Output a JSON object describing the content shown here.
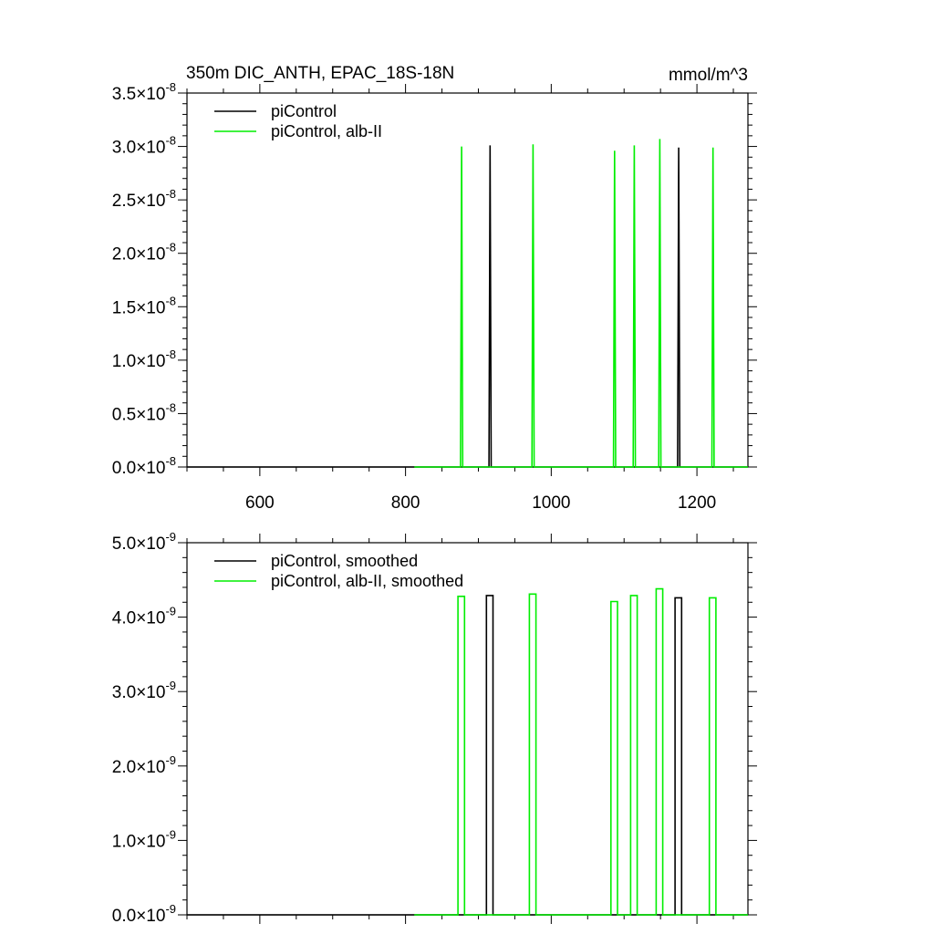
{
  "header": {
    "title": "350m DIC_ANTH, EPAC_18S-18N",
    "units": "mmol/m^3"
  },
  "colors": {
    "piControl": "#000000",
    "alb": "#00ee00"
  },
  "chart_data": [
    {
      "type": "line",
      "title": "350m DIC_ANTH, EPAC_18S-18N",
      "units_label": "mmol/m^3",
      "xlim": [
        500,
        1270
      ],
      "ylim": [
        0,
        3.5e-08
      ],
      "x_ticks": [
        600,
        800,
        1000,
        1200
      ],
      "x_tick_labels": [
        "600",
        "800",
        "1000",
        "1200"
      ],
      "y_ticks": [
        0,
        5e-09,
        1e-08,
        1.5e-08,
        2e-08,
        2.5e-08,
        3e-08,
        3.5e-08
      ],
      "y_tick_mantissas": [
        "0.0",
        "0.5",
        "1.0",
        "1.5",
        "2.0",
        "2.5",
        "3.0",
        "3.5"
      ],
      "y_tick_exponent": "-8",
      "grid": false,
      "legend_position": "top-left",
      "series": [
        {
          "name": "piControl",
          "color": "#000000",
          "baseline_x": [
            500,
            1270
          ],
          "spikes": [
            {
              "x": 916,
              "y": 3.01e-08
            },
            {
              "x": 1175,
              "y": 2.99e-08
            }
          ]
        },
        {
          "name": "piControl, alb-II",
          "color": "#00ee00",
          "baseline_x": [
            812,
            1270
          ],
          "spikes": [
            {
              "x": 877,
              "y": 3e-08
            },
            {
              "x": 975,
              "y": 3.02e-08
            },
            {
              "x": 1087,
              "y": 2.96e-08
            },
            {
              "x": 1114,
              "y": 3.01e-08
            },
            {
              "x": 1149,
              "y": 3.07e-08
            },
            {
              "x": 1222,
              "y": 2.99e-08
            }
          ]
        }
      ]
    },
    {
      "type": "line",
      "xlim": [
        500,
        1270
      ],
      "ylim": [
        0,
        5e-09
      ],
      "x_ticks": [
        600,
        800,
        1000,
        1200
      ],
      "y_ticks": [
        0,
        1e-09,
        2e-09,
        3e-09,
        4e-09,
        5e-09
      ],
      "y_tick_mantissas": [
        "0.0",
        "1.0",
        "2.0",
        "3.0",
        "4.0",
        "5.0"
      ],
      "y_tick_exponent": "-9",
      "grid": false,
      "legend_position": "top-left",
      "series": [
        {
          "name": "piControl, smoothed",
          "color": "#000000",
          "baseline_x": [
            500,
            1270
          ],
          "pulses": [
            {
              "x0": 911,
              "x1": 920,
              "y": 4.29e-09
            },
            {
              "x0": 1170,
              "x1": 1179,
              "y": 4.26e-09
            }
          ]
        },
        {
          "name": "piControl, alb-II, smoothed",
          "color": "#00ee00",
          "baseline_x": [
            812,
            1270
          ],
          "pulses": [
            {
              "x0": 872,
              "x1": 881,
              "y": 4.28e-09
            },
            {
              "x0": 970,
              "x1": 979,
              "y": 4.31e-09
            },
            {
              "x0": 1082,
              "x1": 1091,
              "y": 4.21e-09
            },
            {
              "x0": 1109,
              "x1": 1118,
              "y": 4.29e-09
            },
            {
              "x0": 1144,
              "x1": 1153,
              "y": 4.38e-09
            },
            {
              "x0": 1217,
              "x1": 1226,
              "y": 4.26e-09
            }
          ]
        }
      ]
    }
  ]
}
